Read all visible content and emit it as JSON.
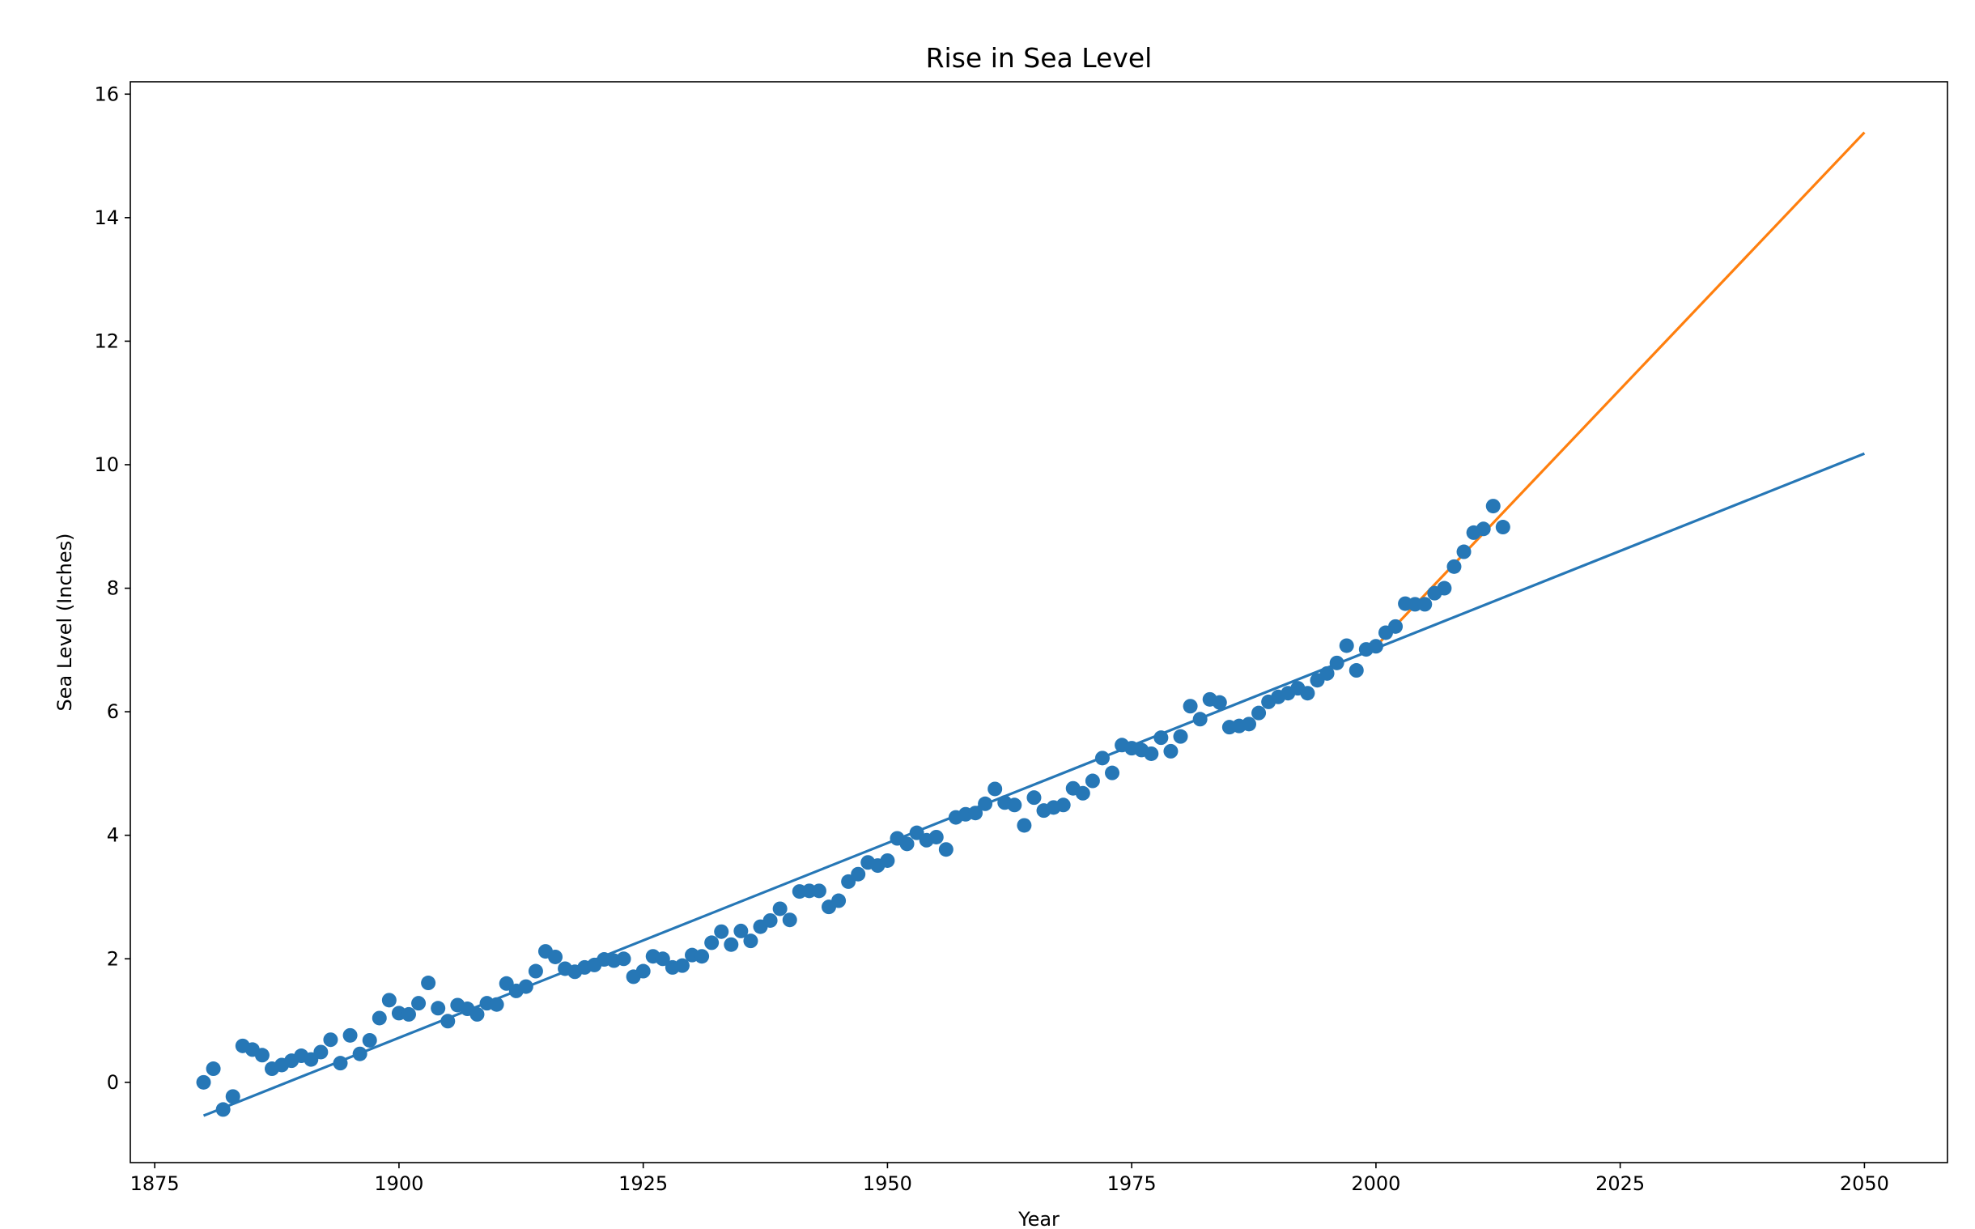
{
  "chart_data": {
    "type": "scatter",
    "title": "Rise in Sea Level",
    "xlabel": "Year",
    "ylabel": "Sea Level (Inches)",
    "xlim": [
      1872.5,
      2058.5
    ],
    "ylim": [
      -1.3,
      16.2
    ],
    "xticks": [
      1875,
      1900,
      1925,
      1950,
      1975,
      2000,
      2025,
      2050
    ],
    "yticks": [
      0,
      2,
      4,
      6,
      8,
      10,
      12,
      14,
      16
    ],
    "grid": false,
    "colors": {
      "points": "#2677b6",
      "fit_all": "#2677b6",
      "fit_recent": "#ff7f0e"
    },
    "points": {
      "x": [
        1880,
        1881,
        1882,
        1883,
        1884,
        1885,
        1886,
        1887,
        1888,
        1889,
        1890,
        1891,
        1892,
        1893,
        1894,
        1895,
        1896,
        1897,
        1898,
        1899,
        1900,
        1901,
        1902,
        1903,
        1904,
        1905,
        1906,
        1907,
        1908,
        1909,
        1910,
        1911,
        1912,
        1913,
        1914,
        1915,
        1916,
        1917,
        1918,
        1919,
        1920,
        1921,
        1922,
        1923,
        1924,
        1925,
        1926,
        1927,
        1928,
        1929,
        1930,
        1931,
        1932,
        1933,
        1934,
        1935,
        1936,
        1937,
        1938,
        1939,
        1940,
        1941,
        1942,
        1943,
        1944,
        1945,
        1946,
        1947,
        1948,
        1949,
        1950,
        1951,
        1952,
        1953,
        1954,
        1955,
        1956,
        1957,
        1958,
        1959,
        1960,
        1961,
        1962,
        1963,
        1964,
        1965,
        1966,
        1967,
        1968,
        1969,
        1970,
        1971,
        1972,
        1973,
        1974,
        1975,
        1976,
        1977,
        1978,
        1979,
        1980,
        1981,
        1982,
        1983,
        1984,
        1985,
        1986,
        1987,
        1988,
        1989,
        1990,
        1991,
        1992,
        1993,
        1994,
        1995,
        1996,
        1997,
        1998,
        1999,
        2000,
        2001,
        2002,
        2003,
        2004,
        2005,
        2006,
        2007,
        2008,
        2009,
        2010,
        2011,
        2012,
        2013
      ],
      "y": [
        0.0,
        0.22,
        -0.44,
        -0.23,
        0.59,
        0.53,
        0.44,
        0.22,
        0.28,
        0.35,
        0.43,
        0.37,
        0.49,
        0.69,
        0.31,
        0.76,
        0.46,
        0.68,
        1.04,
        1.33,
        1.12,
        1.1,
        1.28,
        1.61,
        1.2,
        0.99,
        1.25,
        1.19,
        1.1,
        1.28,
        1.26,
        1.6,
        1.48,
        1.55,
        1.8,
        2.12,
        2.03,
        1.84,
        1.79,
        1.86,
        1.9,
        1.99,
        1.97,
        2.0,
        1.71,
        1.8,
        2.04,
        2.0,
        1.86,
        1.89,
        2.06,
        2.04,
        2.26,
        2.44,
        2.23,
        2.45,
        2.29,
        2.52,
        2.62,
        2.81,
        2.63,
        3.09,
        3.1,
        3.1,
        2.84,
        2.94,
        3.25,
        3.37,
        3.56,
        3.51,
        3.59,
        3.95,
        3.86,
        4.04,
        3.92,
        3.97,
        3.77,
        4.29,
        4.34,
        4.36,
        4.51,
        4.75,
        4.53,
        4.49,
        4.16,
        4.61,
        4.4,
        4.45,
        4.49,
        4.76,
        4.68,
        4.88,
        5.25,
        5.01,
        5.46,
        5.41,
        5.38,
        5.32,
        5.58,
        5.36,
        5.6,
        6.09,
        5.88,
        6.2,
        6.15,
        5.75,
        5.77,
        5.8,
        5.98,
        6.16,
        6.24,
        6.3,
        6.38,
        6.3,
        6.51,
        6.62,
        6.79,
        7.07,
        6.67,
        7.01,
        7.06,
        7.28,
        7.38,
        7.75,
        7.74,
        7.74,
        7.92,
        8.0,
        8.35,
        8.59,
        8.9,
        8.96,
        9.33,
        8.99
      ]
    },
    "lines": [
      {
        "x": [
          1880,
          2050
        ],
        "y": [
          -0.54,
          10.18
        ]
      },
      {
        "x": [
          2000,
          2050
        ],
        "y": [
          7.06,
          15.38
        ]
      }
    ]
  }
}
